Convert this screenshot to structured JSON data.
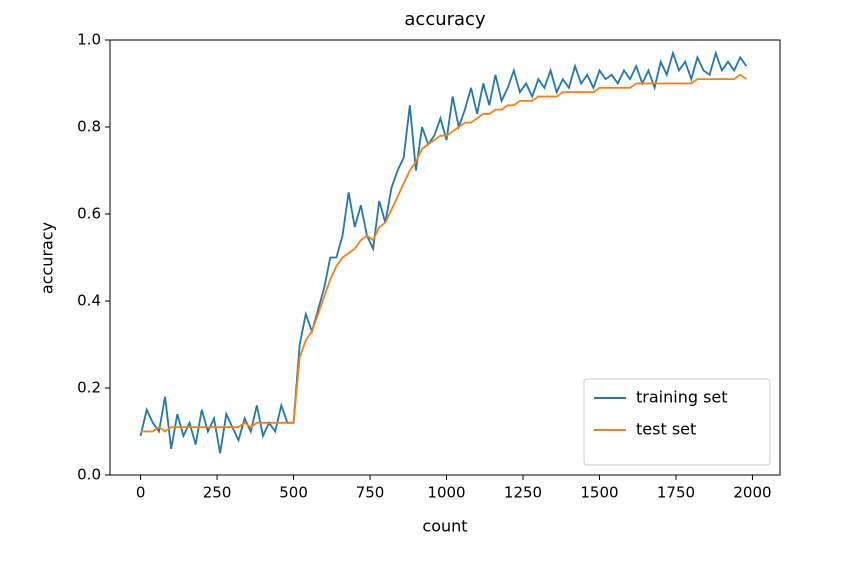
{
  "chart_data": {
    "type": "line",
    "title": "accuracy",
    "xlabel": "count",
    "ylabel": "accuracy",
    "x": [
      0,
      20,
      40,
      60,
      80,
      100,
      120,
      140,
      160,
      180,
      200,
      220,
      240,
      260,
      280,
      300,
      320,
      340,
      360,
      380,
      400,
      420,
      440,
      460,
      480,
      500,
      520,
      540,
      560,
      580,
      600,
      620,
      640,
      660,
      680,
      700,
      720,
      740,
      760,
      780,
      800,
      820,
      840,
      860,
      880,
      900,
      920,
      940,
      960,
      980,
      1000,
      1020,
      1040,
      1060,
      1080,
      1100,
      1120,
      1140,
      1160,
      1180,
      1200,
      1220,
      1240,
      1260,
      1280,
      1300,
      1320,
      1340,
      1360,
      1380,
      1400,
      1420,
      1440,
      1460,
      1480,
      1500,
      1520,
      1540,
      1560,
      1580,
      1600,
      1620,
      1640,
      1660,
      1680,
      1700,
      1720,
      1740,
      1760,
      1780,
      1800,
      1820,
      1840,
      1860,
      1880,
      1900,
      1920,
      1940,
      1960,
      1980
    ],
    "series": [
      {
        "name": "training set",
        "color": "#1f77b4",
        "values": [
          0.09,
          0.15,
          0.12,
          0.1,
          0.18,
          0.06,
          0.14,
          0.09,
          0.12,
          0.07,
          0.15,
          0.1,
          0.13,
          0.05,
          0.14,
          0.11,
          0.08,
          0.13,
          0.1,
          0.16,
          0.09,
          0.12,
          0.1,
          0.16,
          0.12,
          0.12,
          0.3,
          0.37,
          0.33,
          0.38,
          0.43,
          0.5,
          0.5,
          0.55,
          0.65,
          0.57,
          0.62,
          0.55,
          0.52,
          0.63,
          0.58,
          0.66,
          0.7,
          0.73,
          0.85,
          0.7,
          0.8,
          0.76,
          0.78,
          0.82,
          0.77,
          0.87,
          0.8,
          0.84,
          0.89,
          0.83,
          0.9,
          0.85,
          0.92,
          0.86,
          0.89,
          0.93,
          0.88,
          0.9,
          0.87,
          0.91,
          0.89,
          0.93,
          0.88,
          0.91,
          0.89,
          0.94,
          0.9,
          0.92,
          0.89,
          0.93,
          0.91,
          0.92,
          0.9,
          0.93,
          0.91,
          0.94,
          0.9,
          0.93,
          0.89,
          0.95,
          0.92,
          0.97,
          0.93,
          0.95,
          0.91,
          0.96,
          0.93,
          0.92,
          0.97,
          0.93,
          0.95,
          0.93,
          0.96,
          0.94
        ]
      },
      {
        "name": "test set",
        "color": "#ff7f0e",
        "values": [
          0.1,
          0.1,
          0.1,
          0.11,
          0.1,
          0.11,
          0.11,
          0.11,
          0.11,
          0.11,
          0.11,
          0.11,
          0.11,
          0.11,
          0.11,
          0.11,
          0.11,
          0.12,
          0.11,
          0.12,
          0.12,
          0.12,
          0.12,
          0.12,
          0.12,
          0.12,
          0.27,
          0.31,
          0.33,
          0.37,
          0.41,
          0.45,
          0.48,
          0.5,
          0.51,
          0.52,
          0.54,
          0.55,
          0.54,
          0.57,
          0.58,
          0.61,
          0.64,
          0.67,
          0.7,
          0.72,
          0.75,
          0.76,
          0.77,
          0.78,
          0.78,
          0.79,
          0.8,
          0.81,
          0.81,
          0.82,
          0.83,
          0.83,
          0.84,
          0.84,
          0.85,
          0.85,
          0.86,
          0.86,
          0.86,
          0.87,
          0.87,
          0.87,
          0.87,
          0.88,
          0.88,
          0.88,
          0.88,
          0.88,
          0.88,
          0.89,
          0.89,
          0.89,
          0.89,
          0.89,
          0.89,
          0.9,
          0.9,
          0.9,
          0.9,
          0.9,
          0.9,
          0.9,
          0.9,
          0.9,
          0.9,
          0.91,
          0.91,
          0.91,
          0.91,
          0.91,
          0.91,
          0.91,
          0.92,
          0.91
        ]
      }
    ],
    "xlim": [
      -100,
      2090
    ],
    "xticks": [
      0,
      250,
      500,
      750,
      1000,
      1250,
      1500,
      1750,
      2000
    ],
    "ylim": [
      0,
      1
    ],
    "yticks": [
      {
        "value": 0,
        "label": "0.0"
      },
      0.2,
      0.4,
      0.6,
      0.8,
      {
        "value": 1,
        "label": "1.0"
      }
    ],
    "legend": "lower right"
  }
}
